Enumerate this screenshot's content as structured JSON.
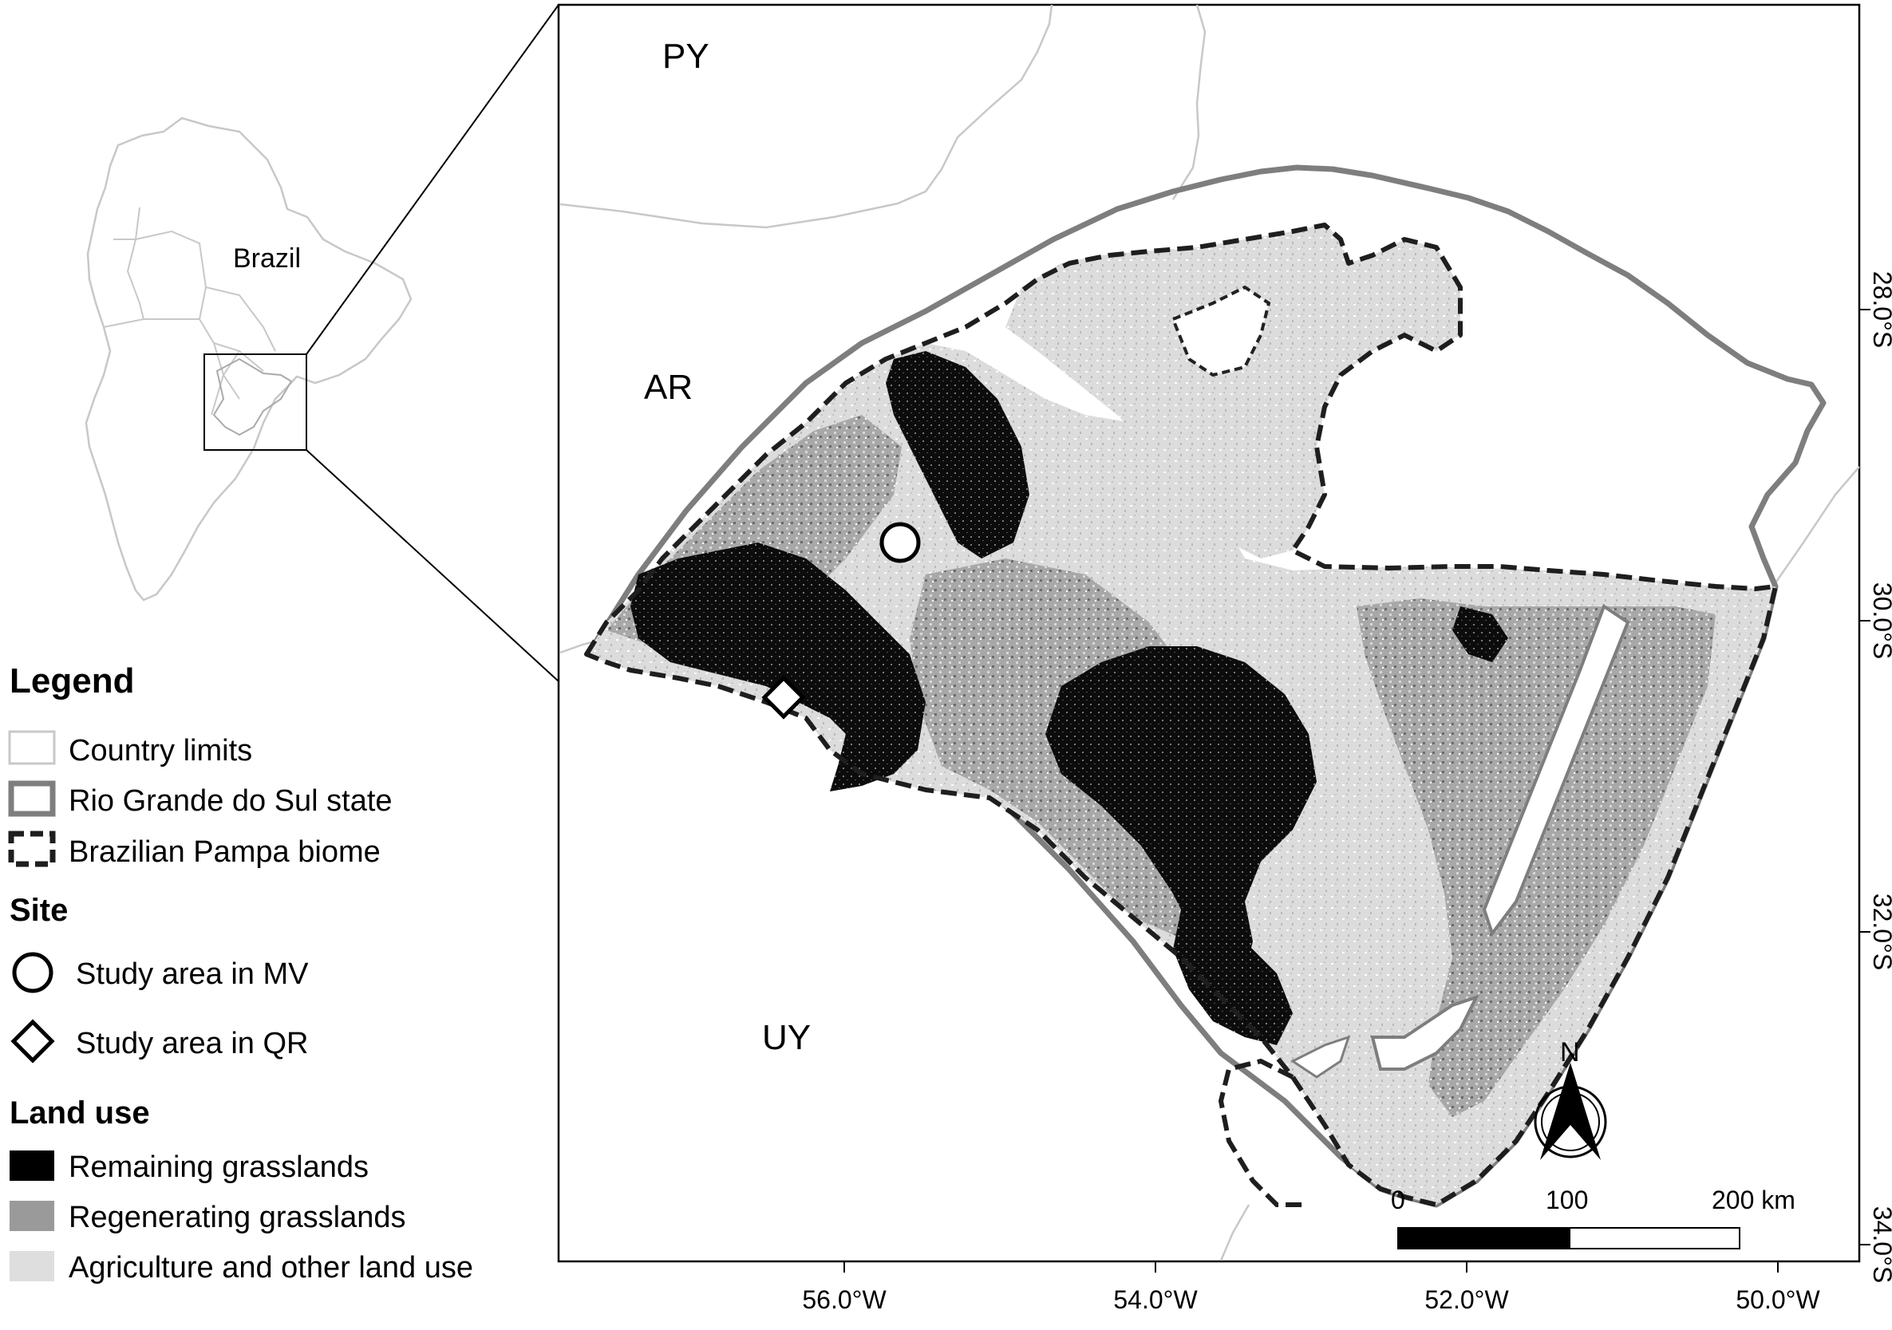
{
  "inset": {
    "country_label": "Brazil"
  },
  "map": {
    "country_labels": [
      "PY",
      "AR",
      "UY"
    ],
    "lon_ticks": [
      "56.0°W",
      "54.0°W",
      "52.0°W",
      "50.0°W"
    ],
    "lat_ticks": [
      "28.0°S",
      "30.0°S",
      "32.0°S",
      "34.0°S"
    ],
    "north_label": "N",
    "scale": {
      "labels": [
        "0",
        "100",
        "200 km"
      ]
    }
  },
  "legend": {
    "title": "Legend",
    "items": [
      "Country limits",
      "Rio Grande do Sul state",
      "Brazilian Pampa biome"
    ],
    "site_title": "Site",
    "site_items": [
      "Study area in MV",
      "Study area in QR"
    ],
    "landuse_title": "Land use",
    "landuse_items": [
      "Remaining grasslands",
      "Regenerating grasslands",
      "Agriculture and other land use"
    ]
  },
  "colors": {
    "country_limits": "#c8c8c8",
    "state": "#808080",
    "biome": "#222222",
    "remaining": "#000000",
    "regenerating": "#9a9a9a",
    "agriculture": "#dedede"
  }
}
